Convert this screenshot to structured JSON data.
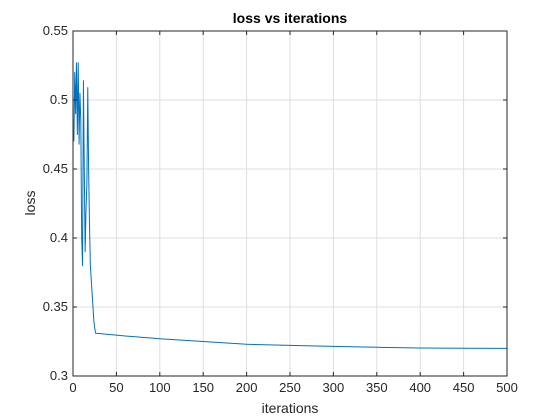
{
  "chart_data": {
    "type": "line",
    "title": "loss vs iterations",
    "xlabel": "iterations",
    "ylabel": "loss",
    "xlim": [
      0,
      500
    ],
    "ylim": [
      0.3,
      0.55
    ],
    "xticks": [
      0,
      50,
      100,
      150,
      200,
      250,
      300,
      350,
      400,
      450,
      500
    ],
    "yticks": [
      0.3,
      0.35,
      0.4,
      0.45,
      0.5,
      0.55
    ],
    "xtick_labels": [
      "0",
      "50",
      "100",
      "150",
      "200",
      "250",
      "300",
      "350",
      "400",
      "450",
      "500"
    ],
    "ytick_labels": [
      "0.3",
      "0.35",
      "0.4",
      "0.45",
      "0.5",
      "0.55"
    ],
    "grid": true,
    "series": [
      {
        "color": "#0072bd",
        "x": [
          1,
          2,
          3,
          4,
          5,
          6,
          7,
          8,
          9,
          10,
          11,
          12,
          13,
          14,
          15,
          16,
          17,
          18,
          19,
          20,
          21,
          22,
          23,
          24,
          25,
          26,
          30,
          40,
          50,
          60,
          70,
          80,
          90,
          100,
          125,
          150,
          175,
          200,
          250,
          300,
          350,
          400,
          450,
          500
        ],
        "y": [
          0.47,
          0.52,
          0.49,
          0.527,
          0.475,
          0.527,
          0.468,
          0.505,
          0.485,
          0.4,
          0.38,
          0.514,
          0.45,
          0.39,
          0.42,
          0.44,
          0.509,
          0.45,
          0.41,
          0.38,
          0.37,
          0.36,
          0.35,
          0.34,
          0.335,
          0.331,
          0.3308,
          0.3302,
          0.3296,
          0.329,
          0.3285,
          0.328,
          0.3275,
          0.327,
          0.326,
          0.325,
          0.324,
          0.323,
          0.3222,
          0.3215,
          0.3208,
          0.3203,
          0.3201,
          0.32
        ]
      }
    ]
  }
}
